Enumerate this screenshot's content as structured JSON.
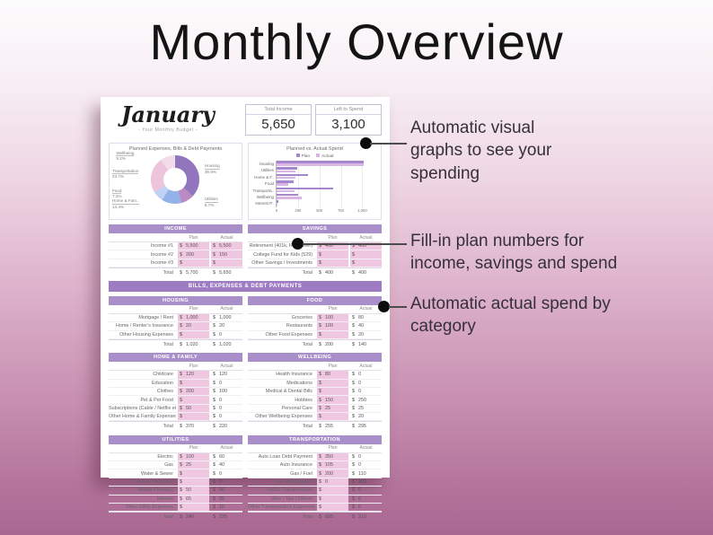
{
  "title": "Monthly Overview",
  "sheet": {
    "month": "January",
    "subtitle": "- Your Monthly Budget -",
    "stats": [
      {
        "label": "Total Income",
        "value": "5,650"
      },
      {
        "label": "Left to Spend",
        "value": "3,100"
      }
    ],
    "donut": {
      "title": "Planned Expenses, Bills & Debt Payments",
      "type": "pie",
      "segments": [
        {
          "label": "Housing",
          "pct": 36.9,
          "color": "#9176bd"
        },
        {
          "label": "Utilities",
          "pct": 8.7,
          "color": "#b а"
        },
        {
          "label": "Home & Fam..",
          "pct": 13.4,
          "color": "#93b2e8"
        },
        {
          "label": "Food",
          "pct": 7.2,
          "color": "#c0d2f4"
        },
        {
          "label": "Transportation",
          "pct": 23.7,
          "color": "#eec3dc"
        },
        {
          "label": "Wellbeing",
          "pct": 9.2,
          "color": "#f3dcea"
        },
        {
          "label": "",
          "pct": 0.9,
          "color": "#e9e2f4"
        }
      ]
    },
    "bar": {
      "title": "Planned vs. Actual Spend",
      "type": "bar",
      "legend": [
        "Plan",
        "Actual"
      ],
      "plan_color": "#a687cd",
      "actual_color": "#d9b6e3",
      "categories": [
        "Housing",
        "Utilities",
        "Home & F..",
        "Food",
        "Transporta..",
        "Wellbeing",
        "Interest P.."
      ],
      "plan": [
        1020,
        240,
        370,
        200,
        655,
        255,
        25
      ],
      "actual": [
        1020,
        225,
        220,
        140,
        210,
        295,
        10
      ],
      "xticks": [
        {
          "label": "0",
          "value": 0
        },
        {
          "label": "250",
          "value": 250
        },
        {
          "label": "500",
          "value": 500
        },
        {
          "label": "750",
          "value": 750
        },
        {
          "label": "1,000",
          "value": 1000
        }
      ],
      "xmax": 1100
    },
    "col_plan": "Plan",
    "col_actual": "Actual",
    "dollar": "$",
    "bills_band": "BILLS, EXPENSES & DEBT PAYMENTS",
    "tables": {
      "income": {
        "title": "INCOME",
        "pink_actual": true,
        "rows": [
          [
            "Income #1",
            "5,500",
            "5,500"
          ],
          [
            "Income #2",
            "200",
            "150"
          ],
          [
            "Income #3",
            "",
            ""
          ]
        ],
        "total": [
          "Total",
          "5,700",
          "5,650"
        ]
      },
      "savings": {
        "title": "SAVINGS",
        "pink_actual": true,
        "rows": [
          [
            "Retirement (401k, IRA, other)",
            "400",
            "400"
          ],
          [
            "College Fund for Kids (529)",
            "",
            ""
          ],
          [
            "Other Savings / Investments",
            "",
            ""
          ]
        ],
        "total": [
          "Total",
          "400",
          "400"
        ]
      },
      "housing": {
        "title": "HOUSING",
        "pink_actual": false,
        "rows": [
          [
            "Mortgage / Rent",
            "1,000",
            "1,000"
          ],
          [
            "Home / Renter's Insurance",
            "20",
            "20"
          ],
          [
            "Other Housing Expenses",
            "",
            "0"
          ]
        ],
        "total": [
          "Total",
          "1,020",
          "1,020"
        ]
      },
      "food": {
        "title": "FOOD",
        "pink_actual": false,
        "rows": [
          [
            "Groceries",
            "100",
            "80"
          ],
          [
            "Restaurants",
            "100",
            "40"
          ],
          [
            "Other Food Expenses",
            "",
            "20"
          ]
        ],
        "total": [
          "Total",
          "200",
          "140"
        ]
      },
      "home_family": {
        "title": "HOME & FAMILY",
        "pink_actual": false,
        "rows": [
          [
            "Childcare",
            "120",
            "120"
          ],
          [
            "Education",
            "",
            "0"
          ],
          [
            "Clothes",
            "200",
            "100"
          ],
          [
            "Pet & Pet Food",
            "",
            "0"
          ],
          [
            "Subscriptions (Cable / Netflix etc.)",
            "50",
            "0"
          ],
          [
            "Other Home & Family Expenses",
            "",
            "0"
          ]
        ],
        "total": [
          "Total",
          "370",
          "220"
        ]
      },
      "wellbeing": {
        "title": "WELLBEING",
        "pink_actual": false,
        "rows": [
          [
            "Health Insurance",
            "80",
            "0"
          ],
          [
            "Medications",
            "",
            "0"
          ],
          [
            "Medical & Dental Bills",
            "",
            "0"
          ],
          [
            "Hobbies",
            "150",
            "250"
          ],
          [
            "Personal Care",
            "25",
            "25"
          ],
          [
            "Other Wellbeing Expenses",
            "",
            "20"
          ]
        ],
        "total": [
          "Total",
          "255",
          "295"
        ]
      },
      "utilities": {
        "title": "UTILITIES",
        "pink_actual": false,
        "rows": [
          [
            "Electric",
            "100",
            "60"
          ],
          [
            "Gas",
            "25",
            "40"
          ],
          [
            "Water & Sewer",
            "",
            "0"
          ],
          [
            "Trash & Recycling",
            "",
            "0"
          ],
          [
            "Mobile Phone(s)",
            "50",
            "50"
          ],
          [
            "Internet",
            "65",
            "65"
          ],
          [
            "Other Utility Expenses",
            "",
            "10"
          ]
        ],
        "total": [
          "Total",
          "240",
          "225"
        ]
      },
      "transportation": {
        "title": "TRANSPORTATION",
        "pink_actual": false,
        "rows": [
          [
            "Auto Loan Debt Payment",
            "350",
            "0"
          ],
          [
            "Auto Insurance",
            "105",
            "0"
          ],
          [
            "Gas / Fuel",
            "200",
            "110"
          ],
          [
            "Car Maintenance",
            "0",
            "100"
          ],
          [
            "Public Transportation",
            "",
            "0"
          ],
          [
            "Uber / Taxi / Others",
            "",
            "0"
          ],
          [
            "Other Transportation Expenses",
            "",
            "0"
          ]
        ],
        "total": [
          "Total",
          "655",
          "210"
        ]
      }
    }
  },
  "annotations": [
    {
      "text": "Automatic visual graphs to see your spending"
    },
    {
      "text": "Fill-in plan numbers for income, savings and spend"
    },
    {
      "text": "Automatic actual spend by category"
    }
  ],
  "colors": {
    "band": "#a88fc9",
    "bills_band": "#9d7cc3",
    "pink_cell": "#f0c7e1",
    "plan_bar": "#a687cd",
    "actual_bar": "#d9b6e3"
  }
}
